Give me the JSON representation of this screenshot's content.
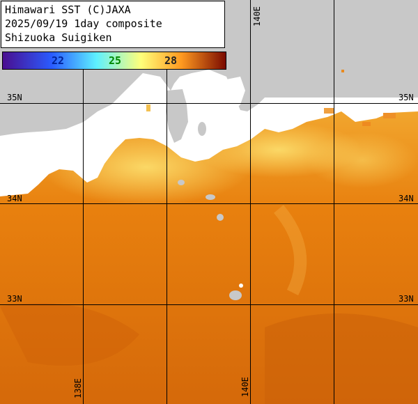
{
  "header": {
    "line1": "Himawari SST (C)JAXA",
    "line2": "2025/09/19 1day composite",
    "line3": "Shizuoka Suigiken"
  },
  "legend": {
    "ticks": [
      {
        "label": "22",
        "color": "#002299"
      },
      {
        "label": "25",
        "color": "#008800"
      },
      {
        "label": "28",
        "color": "#222222"
      }
    ],
    "colors": {
      "cold": "#4a0e8f",
      "cool": "#2a5cff",
      "mid": "#5ef0ff",
      "warm": "#ffff7a",
      "hot": "#ff9a20",
      "hottest": "#7a0a00"
    }
  },
  "grid": {
    "lat_labels": {
      "lat35": "35N",
      "lat34": "34N",
      "lat33": "33N"
    },
    "lon_labels": {
      "lon140_top": "140E",
      "lon138_bottom": "138E",
      "lon140_bottom": "140E"
    }
  },
  "map_colors": {
    "land": "#c8c8c8",
    "cloud": "#ffffff",
    "sea_near_coast": "#f7c84a",
    "sea_main": "#e87a10",
    "sea_deep": "#d66a0a"
  }
}
